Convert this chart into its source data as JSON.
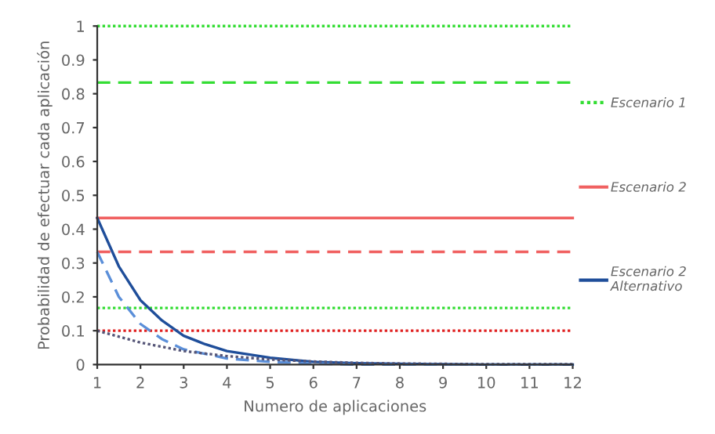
{
  "chart_data": {
    "type": "line",
    "xlabel": "Numero de aplicaciones",
    "ylabel": "Probabilidad de efectuar cada aplicación",
    "xlim": [
      1,
      12
    ],
    "xticks": [
      1,
      2,
      3,
      4,
      5,
      6,
      7,
      8,
      9,
      10,
      11,
      12
    ],
    "ylim": [
      0,
      1
    ],
    "yticks": [
      0,
      0.1,
      0.2,
      0.3,
      0.4,
      0.5,
      0.6,
      0.7,
      0.8,
      0.9,
      1
    ],
    "grid": false,
    "legend": "right",
    "marker": "none",
    "series": [
      {
        "name": "Escenario 1",
        "color": "#33dd33",
        "line_style": "dotted",
        "x": [
          1,
          12
        ],
        "values": [
          1,
          1
        ]
      },
      {
        "color": "#33dd33",
        "line_style": "dashed",
        "x": [
          1,
          12
        ],
        "values": [
          0.833,
          0.833
        ]
      },
      {
        "color": "#33dd33",
        "line_style": "dotted",
        "x": [
          1,
          12
        ],
        "values": [
          0.167,
          0.167
        ]
      },
      {
        "name": "Escenario 2",
        "color": "#f06060",
        "line_style": "solid",
        "x": [
          1,
          12
        ],
        "values": [
          0.433,
          0.433
        ]
      },
      {
        "color": "#f06060",
        "line_style": "dashed",
        "x": [
          1,
          12
        ],
        "values": [
          0.333,
          0.333
        ]
      },
      {
        "color": "#e02020",
        "line_style": "dotted",
        "x": [
          1,
          12
        ],
        "values": [
          0.1,
          0.1
        ]
      },
      {
        "name": "Escenario 2\nAlternativo",
        "color": "#1f4e9a",
        "line_style": "solid",
        "x": [
          1,
          1.5,
          2,
          2.5,
          3,
          3.5,
          4,
          5,
          6,
          7,
          8,
          9,
          10,
          11,
          12
        ],
        "values": [
          0.433,
          0.29,
          0.19,
          0.13,
          0.085,
          0.06,
          0.04,
          0.02,
          0.008,
          0.004,
          0.002,
          0.001,
          0,
          0,
          0
        ]
      },
      {
        "color": "#5b8fd9",
        "line_style": "dashed",
        "x": [
          1,
          1.5,
          2,
          2.5,
          3,
          4,
          5,
          6,
          7,
          8,
          9,
          10,
          11,
          12
        ],
        "values": [
          0.333,
          0.2,
          0.12,
          0.075,
          0.045,
          0.018,
          0.008,
          0.003,
          0,
          0,
          0,
          0,
          0,
          0
        ]
      },
      {
        "color": "#555577",
        "line_style": "dotted",
        "x": [
          1,
          2,
          3,
          4,
          5,
          6,
          7,
          8,
          9,
          10,
          11,
          12
        ],
        "values": [
          0.1,
          0.065,
          0.04,
          0.025,
          0.015,
          0.009,
          0.005,
          0.003,
          0.002,
          0.001,
          0.001,
          0.001
        ]
      }
    ]
  }
}
